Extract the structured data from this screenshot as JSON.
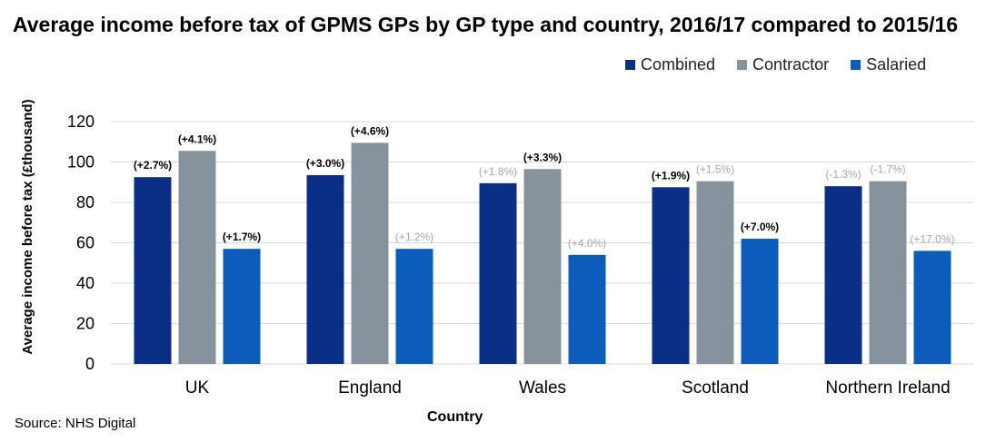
{
  "chart_data": {
    "type": "bar",
    "title": "Average income before tax of GPMS GPs by GP type and country, 2016/17 compared to 2015/16",
    "xlabel": "Country",
    "ylabel": "Average income before tax (£thousand)",
    "ylim": [
      0,
      120
    ],
    "yticks": [
      "0",
      "20",
      "40",
      "60",
      "80",
      "100",
      "120"
    ],
    "grid": true,
    "legend_position": "top-right",
    "categories": [
      "UK",
      "England",
      "Wales",
      "Scotland",
      "Northern Ireland"
    ],
    "series": [
      {
        "name": "Combined",
        "color": "#0b2f86",
        "values": [
          92.5,
          93.5,
          89.5,
          87.5,
          88
        ],
        "labels": [
          "(+2.7%)",
          "(+3.0%)",
          "(+1.8%)",
          "(+1.9%)",
          "(-1.3%)"
        ],
        "label_emphasis": [
          true,
          true,
          false,
          true,
          false
        ]
      },
      {
        "name": "Contractor",
        "color": "#87939c",
        "values": [
          105.5,
          109.5,
          96.5,
          90.5,
          90.5
        ],
        "labels": [
          "(+4.1%)",
          "(+4.6%)",
          "(+3.3%)",
          "(+1.5%)",
          "(-1.7%)"
        ],
        "label_emphasis": [
          true,
          true,
          true,
          false,
          false
        ]
      },
      {
        "name": "Salaried",
        "color": "#0b5cbb",
        "values": [
          57,
          57,
          54,
          62,
          56
        ],
        "labels": [
          "(+1.7%)",
          "(+1.2%)",
          "(+4.0%)",
          "(+7.0%)",
          "(+17.0%)"
        ],
        "label_emphasis": [
          true,
          false,
          false,
          true,
          false
        ]
      }
    ]
  },
  "colors": {
    "emphasis_label": "#000000",
    "muted_label": "#a6a6a6",
    "grid": "#d9d9d9"
  },
  "source": "Source: NHS Digital"
}
